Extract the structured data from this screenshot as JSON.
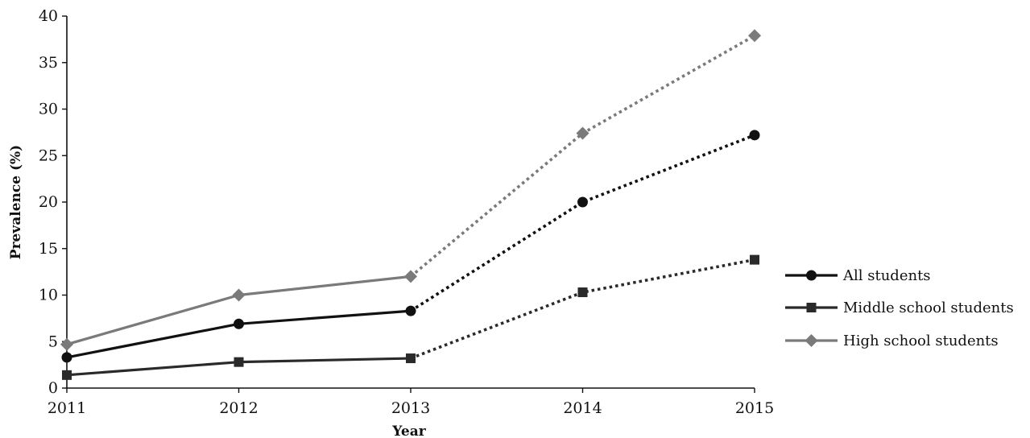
{
  "chart_data": {
    "type": "line",
    "title": "",
    "xlabel": "Year",
    "ylabel": "Prevalence (%)",
    "categories": [
      "2011",
      "2012",
      "2013",
      "2014",
      "2015"
    ],
    "ylim": [
      0,
      40
    ],
    "yticks": [
      0,
      5,
      10,
      15,
      20,
      25,
      30,
      35,
      40
    ],
    "grid": false,
    "legend_position": "right",
    "solid_through_category": "2013",
    "dotted_from_category": "2013",
    "series": [
      {
        "name": "All students",
        "values": [
          3.3,
          6.9,
          8.3,
          20.0,
          27.2
        ],
        "marker": "circle",
        "color": "#111111"
      },
      {
        "name": "Middle school students",
        "values": [
          1.4,
          2.8,
          3.2,
          10.3,
          13.8
        ],
        "marker": "square",
        "color": "#2a2a2a"
      },
      {
        "name": "High school students",
        "values": [
          4.7,
          10.0,
          12.0,
          27.4,
          37.9
        ],
        "marker": "diamond",
        "color": "#7a7a7a"
      }
    ]
  }
}
